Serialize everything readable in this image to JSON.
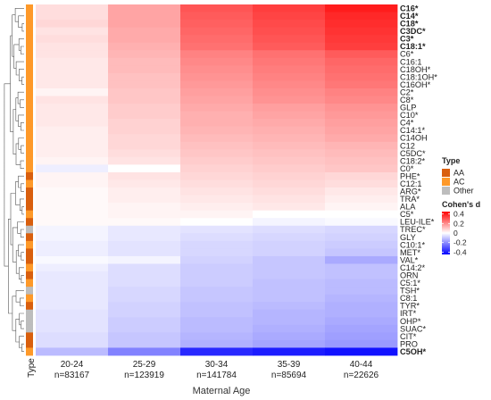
{
  "chart_data": {
    "type": "heatmap",
    "xlabel": "Maternal Age",
    "ylabel": "",
    "annotation_label": "Type",
    "columns": [
      {
        "label": "20-24",
        "n_label": "n=83167"
      },
      {
        "label": "25-29",
        "n_label": "n=123919"
      },
      {
        "label": "30-34",
        "n_label": "n=141784"
      },
      {
        "label": "35-39",
        "n_label": "n=85694"
      },
      {
        "label": "40-44",
        "n_label": "n=22626"
      }
    ],
    "rows": [
      {
        "label": "C16*",
        "bold": true,
        "type": "AC",
        "values": [
          0.06,
          0.16,
          0.3,
          0.34,
          0.4
        ]
      },
      {
        "label": "C14*",
        "bold": true,
        "type": "AC",
        "values": [
          0.06,
          0.16,
          0.29,
          0.33,
          0.38
        ]
      },
      {
        "label": "C18*",
        "bold": true,
        "type": "AC",
        "values": [
          0.07,
          0.16,
          0.28,
          0.32,
          0.37
        ]
      },
      {
        "label": "C3DC*",
        "bold": true,
        "type": "AC",
        "values": [
          0.05,
          0.15,
          0.27,
          0.31,
          0.36
        ]
      },
      {
        "label": "C3*",
        "bold": true,
        "type": "AC",
        "values": [
          0.06,
          0.15,
          0.26,
          0.3,
          0.35
        ]
      },
      {
        "label": "C18:1*",
        "bold": true,
        "type": "AC",
        "values": [
          0.05,
          0.14,
          0.25,
          0.29,
          0.34
        ]
      },
      {
        "label": "C6*",
        "bold": false,
        "type": "AC",
        "values": [
          0.05,
          0.13,
          0.22,
          0.25,
          0.29
        ]
      },
      {
        "label": "C16:1",
        "bold": false,
        "type": "AC",
        "values": [
          0.04,
          0.12,
          0.21,
          0.24,
          0.27
        ]
      },
      {
        "label": "C18OH*",
        "bold": false,
        "type": "AC",
        "values": [
          0.04,
          0.12,
          0.2,
          0.23,
          0.26
        ]
      },
      {
        "label": "C18:1OH*",
        "bold": false,
        "type": "AC",
        "values": [
          0.04,
          0.11,
          0.19,
          0.22,
          0.25
        ]
      },
      {
        "label": "C16OH*",
        "bold": false,
        "type": "AC",
        "values": [
          0.04,
          0.11,
          0.18,
          0.21,
          0.24
        ]
      },
      {
        "label": "C2*",
        "bold": false,
        "type": "AC",
        "values": [
          0.02,
          0.1,
          0.17,
          0.2,
          0.22
        ]
      },
      {
        "label": "C8*",
        "bold": false,
        "type": "AC",
        "values": [
          0.05,
          0.1,
          0.16,
          0.19,
          0.21
        ]
      },
      {
        "label": "GLP",
        "bold": false,
        "type": "AC",
        "values": [
          0.04,
          0.09,
          0.15,
          0.17,
          0.19
        ]
      },
      {
        "label": "C10*",
        "bold": false,
        "type": "AC",
        "values": [
          0.04,
          0.09,
          0.14,
          0.16,
          0.18
        ]
      },
      {
        "label": "C4*",
        "bold": false,
        "type": "AC",
        "values": [
          0.04,
          0.08,
          0.14,
          0.15,
          0.17
        ]
      },
      {
        "label": "C14:1*",
        "bold": false,
        "type": "AC",
        "values": [
          0.03,
          0.08,
          0.13,
          0.14,
          0.16
        ]
      },
      {
        "label": "C14OH",
        "bold": false,
        "type": "AC",
        "values": [
          0.03,
          0.07,
          0.12,
          0.13,
          0.15
        ]
      },
      {
        "label": "C12",
        "bold": false,
        "type": "AC",
        "values": [
          0.03,
          0.07,
          0.11,
          0.12,
          0.13
        ]
      },
      {
        "label": "C5DC*",
        "bold": false,
        "type": "AC",
        "values": [
          0.03,
          0.06,
          0.1,
          0.11,
          0.12
        ]
      },
      {
        "label": "C18:2*",
        "bold": false,
        "type": "AC",
        "values": [
          0.02,
          0.05,
          0.09,
          0.1,
          0.11
        ]
      },
      {
        "label": "C0*",
        "bold": false,
        "type": "AC",
        "values": [
          -0.03,
          0.0,
          0.08,
          0.09,
          0.1
        ]
      },
      {
        "label": "PHE*",
        "bold": false,
        "type": "AA",
        "values": [
          0.02,
          0.05,
          0.07,
          0.08,
          0.07
        ]
      },
      {
        "label": "C12:1",
        "bold": false,
        "type": "AC",
        "values": [
          0.02,
          0.04,
          0.06,
          0.07,
          0.06
        ]
      },
      {
        "label": "ARG*",
        "bold": false,
        "type": "AA",
        "values": [
          0.01,
          0.03,
          0.05,
          0.06,
          0.04
        ]
      },
      {
        "label": "TRA*",
        "bold": false,
        "type": "AA",
        "values": [
          0.01,
          0.03,
          0.04,
          0.05,
          0.03
        ]
      },
      {
        "label": "ALA",
        "bold": false,
        "type": "AA",
        "values": [
          0.01,
          0.02,
          0.03,
          0.04,
          0.02
        ]
      },
      {
        "label": "C5*",
        "bold": false,
        "type": "AC",
        "values": [
          0.01,
          0.02,
          0.02,
          0.0,
          0.0
        ]
      },
      {
        "label": "LEU-ILE*",
        "bold": false,
        "type": "AA",
        "values": [
          0.01,
          0.01,
          0.0,
          -0.02,
          -0.01
        ]
      },
      {
        "label": "TREC*",
        "bold": false,
        "type": "Other",
        "values": [
          -0.02,
          -0.04,
          -0.05,
          -0.06,
          -0.07
        ]
      },
      {
        "label": "GLY",
        "bold": false,
        "type": "AA",
        "values": [
          -0.02,
          -0.04,
          -0.06,
          -0.07,
          -0.08
        ]
      },
      {
        "label": "C10:1*",
        "bold": false,
        "type": "AC",
        "values": [
          -0.03,
          -0.05,
          -0.07,
          -0.08,
          -0.09
        ]
      },
      {
        "label": "MET*",
        "bold": false,
        "type": "AA",
        "values": [
          -0.03,
          -0.05,
          -0.07,
          -0.08,
          -0.1
        ]
      },
      {
        "label": "VAL*",
        "bold": false,
        "type": "AA",
        "values": [
          -0.01,
          -0.02,
          -0.08,
          -0.1,
          -0.15
        ]
      },
      {
        "label": "C14:2*",
        "bold": false,
        "type": "AC",
        "values": [
          -0.03,
          -0.06,
          -0.09,
          -0.1,
          -0.11
        ]
      },
      {
        "label": "ORN",
        "bold": false,
        "type": "AA",
        "values": [
          -0.04,
          -0.06,
          -0.09,
          -0.1,
          -0.11
        ]
      },
      {
        "label": "C5:1*",
        "bold": false,
        "type": "AC",
        "values": [
          -0.04,
          -0.06,
          -0.09,
          -0.11,
          -0.12
        ]
      },
      {
        "label": "TSH*",
        "bold": false,
        "type": "Other",
        "values": [
          -0.04,
          -0.07,
          -0.1,
          -0.11,
          -0.12
        ]
      },
      {
        "label": "C8:1",
        "bold": false,
        "type": "AC",
        "values": [
          -0.04,
          -0.07,
          -0.1,
          -0.11,
          -0.13
        ]
      },
      {
        "label": "TYR*",
        "bold": false,
        "type": "AA",
        "values": [
          -0.04,
          -0.08,
          -0.11,
          -0.12,
          -0.14
        ]
      },
      {
        "label": "IRT*",
        "bold": false,
        "type": "Other",
        "values": [
          -0.05,
          -0.08,
          -0.11,
          -0.13,
          -0.14
        ]
      },
      {
        "label": "OHP*",
        "bold": false,
        "type": "Other",
        "values": [
          -0.05,
          -0.09,
          -0.12,
          -0.13,
          -0.15
        ]
      },
      {
        "label": "SUAC*",
        "bold": false,
        "type": "Other",
        "values": [
          -0.05,
          -0.09,
          -0.12,
          -0.14,
          -0.16
        ]
      },
      {
        "label": "CIT*",
        "bold": false,
        "type": "AA",
        "values": [
          -0.06,
          -0.1,
          -0.13,
          -0.15,
          -0.17
        ]
      },
      {
        "label": "PRO",
        "bold": false,
        "type": "AA",
        "values": [
          -0.06,
          -0.1,
          -0.14,
          -0.16,
          -0.18
        ]
      },
      {
        "label": "C5OH*",
        "bold": true,
        "type": "AC",
        "values": [
          -0.12,
          -0.22,
          -0.38,
          -0.4,
          -0.42
        ]
      }
    ],
    "type_legend": {
      "title": "Type",
      "entries": [
        {
          "label": "AA",
          "color": "#d95f0e"
        },
        {
          "label": "AC",
          "color": "#fe9929"
        },
        {
          "label": "Other",
          "color": "#bdbdbd"
        }
      ]
    },
    "color_legend": {
      "title": "Cohen's d",
      "ticks": [
        "0.4",
        "0.2",
        "0",
        "-0.2",
        "-0.4"
      ],
      "tick_values": [
        0.4,
        0.2,
        0,
        -0.2,
        -0.4
      ],
      "range": [
        -0.45,
        0.45
      ],
      "colors": {
        "low": "#0000ff",
        "mid": "#ffffff",
        "high": "#ff0000"
      }
    },
    "legend_position": "right",
    "grid": false
  }
}
